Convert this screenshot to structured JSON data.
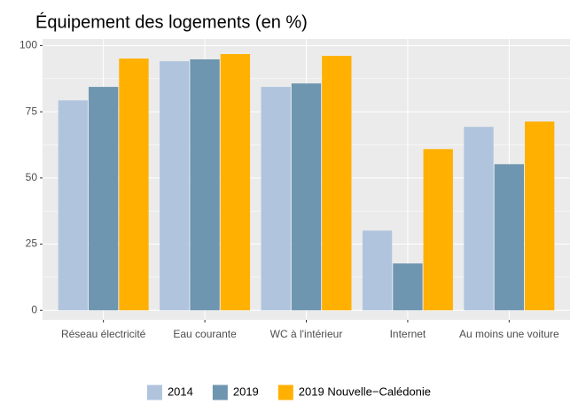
{
  "chart_data": {
    "type": "bar",
    "title": "Équipement des logements (en %)",
    "categories": [
      "Réseau électricité",
      "Eau courante",
      "WC à l'intérieur",
      "Internet",
      "Au moins une voiture"
    ],
    "series": [
      {
        "name": "2014",
        "color": "#b0c4de",
        "values": [
          79.3,
          94.1,
          84.4,
          30.1,
          69.3
        ]
      },
      {
        "name": "2019",
        "color": "#6e96b0",
        "values": [
          84.4,
          94.8,
          85.7,
          17.7,
          55.2
        ]
      },
      {
        "name": "2019 Nouvelle−Calédonie",
        "color": "#ffb000",
        "values": [
          95.1,
          96.8,
          96.1,
          60.9,
          71.3
        ]
      }
    ],
    "ylim": [
      -3.6,
      102.5
    ],
    "yticks": [
      0,
      25,
      50,
      75,
      100
    ],
    "grid": true,
    "legend": "bottom"
  }
}
